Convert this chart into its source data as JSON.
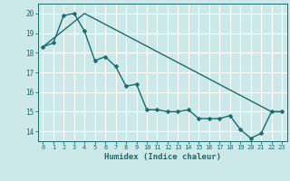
{
  "xlabel": "Humidex (Indice chaleur)",
  "xlim": [
    -0.5,
    23.5
  ],
  "ylim": [
    13.5,
    20.5
  ],
  "yticks": [
    14,
    15,
    16,
    17,
    18,
    19,
    20
  ],
  "xticks": [
    0,
    1,
    2,
    3,
    4,
    5,
    6,
    7,
    8,
    9,
    10,
    11,
    12,
    13,
    14,
    15,
    16,
    17,
    18,
    19,
    20,
    21,
    22,
    23
  ],
  "background_color": "#cce8e8",
  "grid_color": "#ffffff",
  "line_color": "#1a6b6b",
  "series1_x": [
    0,
    1,
    2,
    3,
    4,
    5,
    6,
    7,
    8,
    9,
    10,
    11,
    12,
    13,
    14,
    15,
    16,
    17,
    18,
    19,
    20,
    21,
    22,
    23
  ],
  "series1_y": [
    18.3,
    18.5,
    19.9,
    20.0,
    19.1,
    17.6,
    17.8,
    17.3,
    16.3,
    16.4,
    15.1,
    15.1,
    15.0,
    15.0,
    15.1,
    14.65,
    14.65,
    14.65,
    14.8,
    14.1,
    13.65,
    13.9,
    15.0,
    15.0
  ],
  "series2_x": [
    0,
    4,
    22,
    23
  ],
  "series2_y": [
    18.3,
    20.0,
    15.0,
    15.0
  ],
  "markersize": 2.5,
  "linewidth": 1.0
}
